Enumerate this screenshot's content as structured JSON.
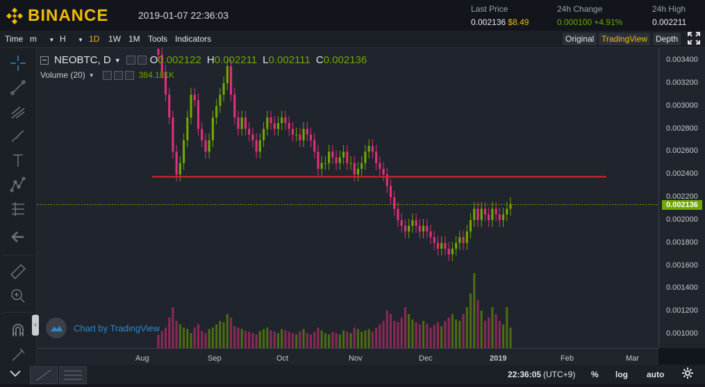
{
  "header": {
    "brand": "BINANCE",
    "datetime": "2019-01-07 22:36:03",
    "last_price_label": "Last Price",
    "last_price_value": "0.002136",
    "last_price_usd": "$8.49",
    "change_label": "24h Change",
    "change_value": "0.000100",
    "change_pct": "+4.91%",
    "high_label": "24h High",
    "high_value": "0.002211"
  },
  "toolbar": {
    "time": "Time",
    "m": "m",
    "h": "H",
    "d1": "1D",
    "w1": "1W",
    "mo1": "1M",
    "tools": "Tools",
    "indicators": "Indicators",
    "original": "Original",
    "tradingview": "TradingView",
    "depth": "Depth"
  },
  "legend": {
    "symbol": "NEOBTC, D",
    "o_label": "O",
    "o_value": "0.002122",
    "h_label": "H",
    "h_value": "0.002211",
    "l_label": "L",
    "l_value": "0.002111",
    "c_label": "C",
    "c_value": "0.002136",
    "volume_label": "Volume (20)",
    "volume_value": "384.181K"
  },
  "watermark": "Chart by TradingView",
  "bottombar": {
    "clock": "22:36:05",
    "tz": "(UTC+9)",
    "pct": "%",
    "log": "log",
    "auto": "auto"
  },
  "colors": {
    "up": "#70a800",
    "down": "#e0307a",
    "resistance": "#e3202a",
    "accent": "#f0b90b"
  },
  "chart_data": {
    "type": "candlestick",
    "symbol": "NEOBTC",
    "interval": "D",
    "y_ticks": [
      "0.003400",
      "0.003200",
      "0.003000",
      "0.002800",
      "0.002600",
      "0.002400",
      "0.002200",
      "0.002000",
      "0.001800",
      "0.001600",
      "0.001400",
      "0.001200",
      "0.001000"
    ],
    "x_ticks": [
      "Aug",
      "Sep",
      "Oct",
      "Nov",
      "Dec",
      "2019",
      "Feb",
      "Mar"
    ],
    "current_price": "0.002136",
    "horizontal_line": 0.00238,
    "close_series": [
      0.00345,
      0.0033,
      0.0031,
      0.0029,
      0.0026,
      0.0024,
      0.0025,
      0.0027,
      0.0029,
      0.0031,
      0.00305,
      0.0028,
      0.0027,
      0.0026,
      0.0027,
      0.0029,
      0.003,
      0.0031,
      0.0032,
      0.00335,
      0.0031,
      0.0029,
      0.0028,
      0.0029,
      0.0028,
      0.00275,
      0.0027,
      0.0026,
      0.0027,
      0.0028,
      0.0029,
      0.00285,
      0.0028,
      0.00285,
      0.0029,
      0.00285,
      0.0028,
      0.00275,
      0.00275,
      0.0027,
      0.0028,
      0.00275,
      0.0027,
      0.0026,
      0.00245,
      0.0025,
      0.0025,
      0.0026,
      0.00255,
      0.0025,
      0.00255,
      0.0026,
      0.0025,
      0.0025,
      0.0024,
      0.00245,
      0.0025,
      0.0026,
      0.00265,
      0.0026,
      0.0025,
      0.00245,
      0.0024,
      0.0023,
      0.0022,
      0.0021,
      0.002,
      0.00195,
      0.0019,
      0.00195,
      0.002,
      0.00195,
      0.0019,
      0.00195,
      0.0019,
      0.00185,
      0.0018,
      0.00175,
      0.0018,
      0.00175,
      0.0017,
      0.00175,
      0.0018,
      0.00185,
      0.0018,
      0.0019,
      0.002,
      0.0021,
      0.002,
      0.0021,
      0.00205,
      0.002,
      0.0021,
      0.00205,
      0.002,
      0.00205,
      0.0021,
      0.00214
    ],
    "volume_series": [
      20,
      25,
      30,
      45,
      60,
      40,
      35,
      30,
      28,
      22,
      30,
      35,
      25,
      22,
      28,
      30,
      35,
      40,
      38,
      50,
      45,
      32,
      30,
      28,
      25,
      24,
      22,
      20,
      25,
      28,
      30,
      26,
      24,
      22,
      28,
      26,
      24,
      22,
      20,
      25,
      28,
      22,
      20,
      24,
      30,
      26,
      22,
      20,
      24,
      22,
      20,
      26,
      24,
      22,
      30,
      28,
      24,
      26,
      28,
      24,
      30,
      35,
      40,
      55,
      50,
      40,
      38,
      45,
      60,
      50,
      42,
      38,
      35,
      40,
      36,
      30,
      34,
      38,
      32,
      40,
      45,
      50,
      42,
      40,
      50,
      60,
      80,
      110,
      70,
      55,
      40,
      45,
      60,
      50,
      40,
      35,
      60,
      30
    ]
  }
}
